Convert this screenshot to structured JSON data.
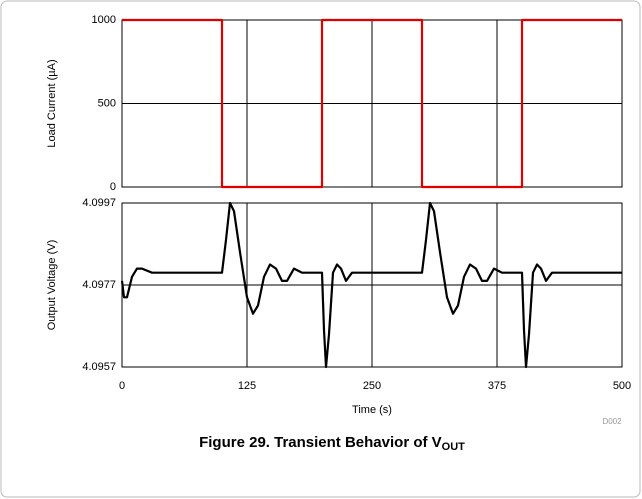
{
  "chart_data": [
    {
      "type": "line",
      "ylabel": "Load Current (µA)",
      "x": [
        0,
        100,
        100,
        200,
        200,
        300,
        300,
        400,
        400,
        500
      ],
      "series": [
        {
          "color": "#e00000",
          "values": [
            1000,
            1000,
            0,
            0,
            1000,
            1000,
            0,
            0,
            1000,
            1000
          ]
        }
      ],
      "xlim": [
        0,
        500
      ],
      "xticks": [
        0,
        125,
        250,
        375,
        500
      ],
      "ylim": [
        0,
        1000
      ],
      "yticks": [
        0,
        500,
        1000
      ],
      "grid": true
    },
    {
      "type": "line",
      "ylabel": "Output Voltage (V)",
      "xlabel": "Time (s)",
      "x": [
        0,
        2,
        5,
        10,
        15,
        20,
        30,
        100,
        104,
        108,
        112,
        118,
        125,
        131,
        136,
        142,
        148,
        154,
        160,
        165,
        172,
        180,
        200,
        202,
        204,
        207,
        211,
        215,
        219,
        224,
        230,
        240,
        300,
        304,
        308,
        312,
        318,
        325,
        331,
        336,
        342,
        348,
        354,
        360,
        365,
        372,
        380,
        400,
        402,
        404,
        407,
        411,
        415,
        419,
        424,
        430,
        440,
        500
      ],
      "series": [
        {
          "color": "#000000",
          "values": [
            4.0978,
            4.0974,
            4.0974,
            4.0979,
            4.0981,
            4.0981,
            4.098,
            4.098,
            4.0988,
            4.0997,
            4.0995,
            4.0985,
            4.0974,
            4.097,
            4.0972,
            4.0979,
            4.0982,
            4.0981,
            4.0978,
            4.0978,
            4.0981,
            4.098,
            4.098,
            4.0966,
            4.0957,
            4.0965,
            4.098,
            4.0982,
            4.0981,
            4.0978,
            4.098,
            4.098,
            4.098,
            4.0988,
            4.0997,
            4.0995,
            4.0985,
            4.0974,
            4.097,
            4.0972,
            4.0979,
            4.0982,
            4.0981,
            4.0978,
            4.0978,
            4.0981,
            4.098,
            4.098,
            4.0966,
            4.0957,
            4.0965,
            4.098,
            4.0982,
            4.0981,
            4.0978,
            4.098,
            4.098,
            4.098
          ]
        }
      ],
      "xlim": [
        0,
        500
      ],
      "xticks": [
        0,
        125,
        250,
        375,
        500
      ],
      "ylim": [
        4.0957,
        4.0997
      ],
      "yticks": [
        4.0957,
        4.0977,
        4.0997
      ],
      "grid": true
    }
  ],
  "note": "D002",
  "caption": {
    "text": "Figure 29. Transient Behavior of V",
    "subscript": "OUT"
  }
}
